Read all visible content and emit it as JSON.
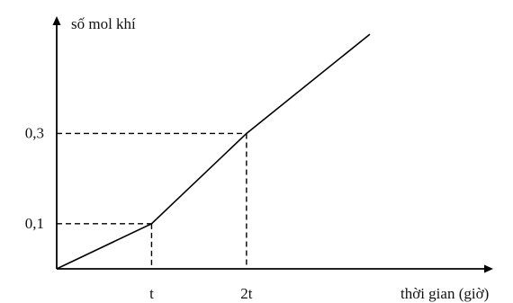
{
  "chart_data": {
    "type": "line",
    "xlabel": "thời gian (giờ)",
    "ylabel": "số mol khí",
    "series": [
      {
        "x": [
          0,
          1,
          2,
          3.3
        ],
        "y": [
          0,
          0.1,
          0.3,
          0.52
        ]
      }
    ],
    "x_ticks": [
      {
        "value": 1,
        "label": "t"
      },
      {
        "value": 2,
        "label": "2t"
      }
    ],
    "y_ticks": [
      {
        "value": 0.1,
        "label": "0,1"
      },
      {
        "value": 0.3,
        "label": "0,3"
      }
    ],
    "xlim": [
      0,
      4.6
    ],
    "ylim": [
      0,
      0.56
    ],
    "grid": false,
    "dashed_guides": true,
    "colors": {
      "line": "#000000",
      "axis": "#000000",
      "text": "#111111"
    }
  }
}
